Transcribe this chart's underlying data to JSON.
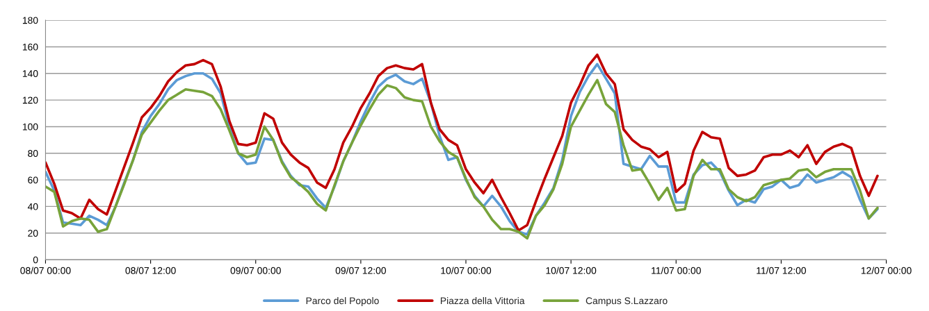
{
  "chart_data": {
    "type": "line",
    "categories": [
      "08/07 00:00",
      null,
      null,
      null,
      null,
      null,
      null,
      null,
      null,
      null,
      null,
      null,
      "08/07 12:00",
      null,
      null,
      null,
      null,
      null,
      null,
      null,
      null,
      null,
      null,
      null,
      "09/07 00:00",
      null,
      null,
      null,
      null,
      null,
      null,
      null,
      null,
      null,
      null,
      null,
      "09/07 12:00",
      null,
      null,
      null,
      null,
      null,
      null,
      null,
      null,
      null,
      null,
      null,
      "10/07 00:00",
      null,
      null,
      null,
      null,
      null,
      null,
      null,
      null,
      null,
      null,
      null,
      "10/07 12:00",
      null,
      null,
      null,
      null,
      null,
      null,
      null,
      null,
      null,
      null,
      null,
      "11/07 00:00",
      null,
      null,
      null,
      null,
      null,
      null,
      null,
      null,
      null,
      null,
      null,
      "11/07 12:00",
      null,
      null,
      null,
      null,
      null,
      null,
      null,
      null,
      null,
      null,
      null,
      "12/07 00:00"
    ],
    "series": [
      {
        "name": "Parco del Popolo",
        "color": "#5b9bd5",
        "values": [
          66,
          52,
          28,
          27,
          26,
          33,
          30,
          26,
          40,
          58,
          75,
          96,
          108,
          117,
          128,
          135,
          138,
          140,
          140,
          136,
          125,
          100,
          80,
          72,
          73,
          91,
          90,
          74,
          63,
          56,
          55,
          46,
          39,
          55,
          74,
          88,
          104,
          118,
          130,
          136,
          139,
          134,
          132,
          136,
          118,
          93,
          75,
          77,
          60,
          48,
          40,
          48,
          40,
          29,
          21,
          19,
          33,
          43,
          54,
          75,
          108,
          126,
          138,
          147,
          136,
          125,
          72,
          70,
          68,
          78,
          70,
          70,
          43,
          43,
          64,
          71,
          73,
          66,
          52,
          41,
          45,
          43,
          53,
          55,
          60,
          54,
          56,
          64,
          58,
          60,
          62,
          66,
          62,
          45,
          31,
          38,
          null
        ]
      },
      {
        "name": "Piazza della Vittoria",
        "color": "#c00000",
        "values": [
          73,
          57,
          37,
          35,
          31,
          45,
          38,
          34,
          52,
          70,
          88,
          107,
          114,
          123,
          134,
          141,
          146,
          147,
          150,
          147,
          130,
          104,
          87,
          86,
          88,
          110,
          106,
          88,
          79,
          73,
          69,
          58,
          54,
          68,
          88,
          100,
          114,
          125,
          138,
          144,
          146,
          144,
          143,
          147,
          118,
          98,
          90,
          86,
          68,
          58,
          50,
          60,
          47,
          35,
          22,
          26,
          44,
          61,
          77,
          93,
          118,
          131,
          146,
          154,
          140,
          132,
          98,
          90,
          85,
          83,
          77,
          81,
          51,
          57,
          82,
          96,
          92,
          91,
          69,
          63,
          64,
          67,
          77,
          79,
          79,
          82,
          77,
          86,
          72,
          81,
          85,
          87,
          84,
          63,
          48,
          63,
          null
        ]
      },
      {
        "name": "Campus S.Lazzaro",
        "color": "#77a33a",
        "values": [
          55,
          51,
          25,
          29,
          31,
          30,
          21,
          23,
          40,
          57,
          75,
          94,
          103,
          112,
          120,
          124,
          128,
          127,
          126,
          123,
          113,
          97,
          80,
          77,
          79,
          100,
          90,
          73,
          62,
          57,
          51,
          42,
          37,
          56,
          74,
          88,
          101,
          113,
          124,
          131,
          129,
          122,
          120,
          119,
          100,
          89,
          81,
          77,
          61,
          47,
          40,
          30,
          23,
          23,
          21,
          16,
          33,
          41,
          53,
          72,
          100,
          112,
          124,
          135,
          117,
          111,
          86,
          67,
          68,
          57,
          45,
          54,
          37,
          38,
          63,
          75,
          68,
          68,
          53,
          47,
          44,
          47,
          56,
          58,
          60,
          61,
          67,
          68,
          62,
          66,
          68,
          68,
          68,
          52,
          31,
          39,
          null
        ]
      }
    ],
    "ylim": [
      0,
      180
    ],
    "yticks": [
      0,
      20,
      40,
      60,
      80,
      100,
      120,
      140,
      160,
      180
    ],
    "grid": "y",
    "legend": "bottom",
    "marker": "none",
    "line_style": "solid"
  }
}
